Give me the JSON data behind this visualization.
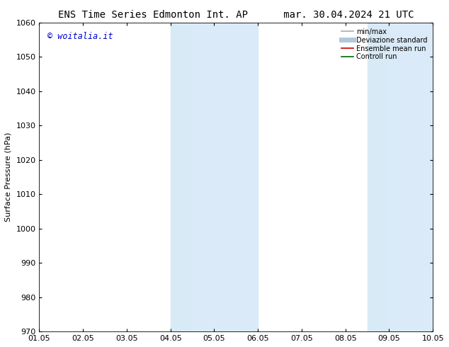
{
  "title_left": "ENS Time Series Edmonton Int. AP",
  "title_right": "mar. 30.04.2024 21 UTC",
  "ylabel": "Surface Pressure (hPa)",
  "watermark": "© woitalia.it",
  "watermark_color": "#0000cc",
  "xlim_start": 0,
  "xlim_end": 9,
  "ylim_bottom": 970,
  "ylim_top": 1060,
  "yticks": [
    970,
    980,
    990,
    1000,
    1010,
    1020,
    1030,
    1040,
    1050,
    1060
  ],
  "xtick_labels": [
    "01.05",
    "02.05",
    "03.05",
    "04.05",
    "05.05",
    "06.05",
    "07.05",
    "08.05",
    "09.05",
    "10.05"
  ],
  "background_color": "#ffffff",
  "shaded_regions": [
    {
      "xmin": 3.0,
      "xmax": 3.5,
      "color": "#d8eaf5"
    },
    {
      "xmin": 3.5,
      "xmax": 5.0,
      "color": "#daeaf8"
    },
    {
      "xmin": 7.5,
      "xmax": 8.0,
      "color": "#d8eaf5"
    },
    {
      "xmin": 8.0,
      "xmax": 9.0,
      "color": "#daeaf8"
    }
  ],
  "legend_items": [
    {
      "label": "min/max",
      "color": "#aaaaaa",
      "lw": 1.2,
      "style": "solid"
    },
    {
      "label": "Deviazione standard",
      "color": "#b0c8dc",
      "lw": 5,
      "style": "solid"
    },
    {
      "label": "Ensemble mean run",
      "color": "#cc0000",
      "lw": 1.2,
      "style": "solid"
    },
    {
      "label": "Controll run",
      "color": "#006600",
      "lw": 1.2,
      "style": "solid"
    }
  ],
  "title_fontsize": 10,
  "axis_fontsize": 8,
  "tick_fontsize": 8,
  "legend_fontsize": 7
}
